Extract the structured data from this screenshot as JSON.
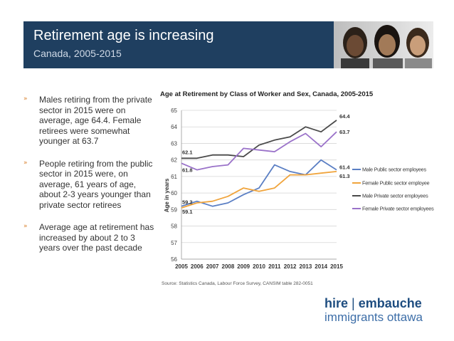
{
  "slide": {
    "title": "Retirement age is increasing",
    "subtitle": "Canada, 2005-2015",
    "accent_color": "#1f3f60"
  },
  "bullets": [
    {
      "marker": "»",
      "text": "Males retiring from the private sector in 2015 were on average, age 64.4. Female retirees were somewhat younger at 63.7"
    },
    {
      "marker": "»",
      "text": "People retiring from the public sector in 2015 were, on average, 61 years of age, about 2-3 years younger than private sector retirees"
    },
    {
      "marker": "»",
      "text": "Average age at retirement has increased by about 2 to 3 years over the past decade"
    }
  ],
  "logo": {
    "word1": "hire",
    "separator": "|",
    "word2": "embauche",
    "line2": "immigrants ottawa"
  },
  "chart_data": {
    "type": "line",
    "title": "Age at Retirement by Class of Worker and Sex, Canada, 2005-2015",
    "xlabel": "",
    "ylabel": "Age in years",
    "ylim": [
      56,
      65
    ],
    "yticks": [
      56,
      57,
      58,
      59,
      60,
      61,
      62,
      63,
      64,
      65
    ],
    "x": [
      2005,
      2006,
      2007,
      2008,
      2009,
      2010,
      2011,
      2012,
      2013,
      2014,
      2015
    ],
    "grid": true,
    "legend_position": "right",
    "source": "Source: Statistics Canada, Labour Force Survey, CANSIM table 282-0051",
    "series": [
      {
        "name": "Male Public sector employees",
        "color": "#5b7fc4",
        "values": [
          59.2,
          59.5,
          59.2,
          59.4,
          59.9,
          60.3,
          61.7,
          61.3,
          61.1,
          62.0,
          61.4
        ],
        "start_label": "59.2",
        "end_label": "61.4"
      },
      {
        "name": "Female Public sector employee",
        "color": "#f0a43c",
        "values": [
          59.1,
          59.4,
          59.5,
          59.8,
          60.3,
          60.1,
          60.3,
          61.1,
          61.1,
          61.2,
          61.3
        ],
        "start_label": "59.1",
        "end_label": "61.3"
      },
      {
        "name": "Male Private sector employees",
        "color": "#4a4a4a",
        "values": [
          62.1,
          62.1,
          62.3,
          62.3,
          62.2,
          62.9,
          63.2,
          63.4,
          64.0,
          63.7,
          64.4
        ],
        "start_label": "62.1",
        "end_label": "64.4"
      },
      {
        "name": "Female Private sector employees",
        "color": "#9a72c9",
        "values": [
          61.8,
          61.4,
          61.6,
          61.7,
          62.7,
          62.6,
          62.5,
          63.1,
          63.6,
          62.8,
          63.7
        ],
        "start_label": "61.8",
        "end_label": "63.7"
      }
    ]
  }
}
